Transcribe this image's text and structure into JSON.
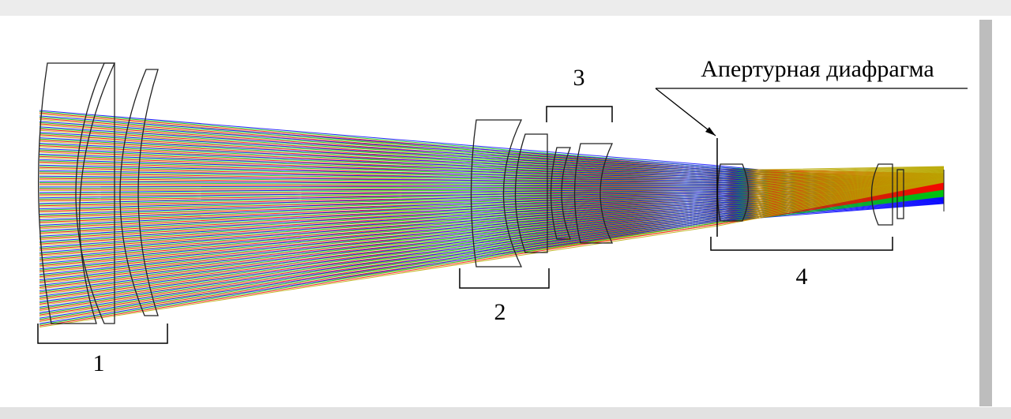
{
  "groups": [
    {
      "label": "1"
    },
    {
      "label": "2"
    },
    {
      "label": "3"
    },
    {
      "label": "4"
    }
  ],
  "aperture_label": "Апертурная диафрагма"
}
